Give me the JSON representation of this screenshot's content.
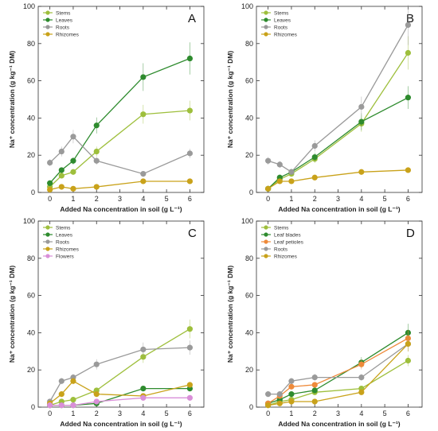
{
  "chart_data": [
    {
      "type": "line",
      "panel": "A",
      "xlabel": "Added Na concentration in soil (g L⁻¹)",
      "ylabel": "Na⁺ concentration (g kg⁻¹ DM)",
      "xlim": [
        -0.5,
        6.6
      ],
      "ylim": [
        0,
        100
      ],
      "xticks": [
        0,
        1,
        2,
        3,
        4,
        5,
        6
      ],
      "yticks": [
        0,
        20,
        40,
        60,
        80,
        100
      ],
      "x": [
        0,
        0.5,
        1,
        2,
        4,
        6
      ],
      "series": [
        {
          "name": "Stems",
          "color": "#9ebf3c",
          "values": [
            3,
            9,
            11,
            22,
            42,
            44
          ]
        },
        {
          "name": "Leaves",
          "color": "#2e8b2e",
          "values": [
            5,
            12,
            17,
            36,
            62,
            72
          ]
        },
        {
          "name": "Roots",
          "color": "#9a9a9a",
          "values": [
            16,
            22,
            30,
            17,
            10,
            21
          ]
        },
        {
          "name": "Rhizomes",
          "color": "#c9a21a",
          "values": [
            1.5,
            3,
            2,
            3,
            6,
            6
          ]
        }
      ],
      "legend": "top-left"
    },
    {
      "type": "line",
      "panel": "B",
      "xlabel": "Added Na concentration in soil (g L⁻¹)",
      "ylabel": "Na⁺ concentration (g kg⁻¹ DM)",
      "xlim": [
        -0.5,
        6.6
      ],
      "ylim": [
        0,
        100
      ],
      "xticks": [
        0,
        1,
        2,
        3,
        4,
        5,
        6
      ],
      "yticks": [
        0,
        20,
        40,
        60,
        80,
        100
      ],
      "x": [
        0,
        0.5,
        1,
        2,
        4,
        6
      ],
      "series": [
        {
          "name": "Stems",
          "color": "#9ebf3c",
          "values": [
            2,
            7,
            10,
            18,
            37,
            75
          ]
        },
        {
          "name": "Leaves",
          "color": "#2e8b2e",
          "values": [
            2,
            8,
            11,
            19,
            38,
            51
          ]
        },
        {
          "name": "Roots",
          "color": "#9a9a9a",
          "values": [
            17,
            15,
            11,
            25,
            46,
            90
          ]
        },
        {
          "name": "Rhizomes",
          "color": "#c9a21a",
          "values": [
            2,
            6,
            6,
            8,
            11,
            12
          ]
        }
      ],
      "legend": "top-left"
    },
    {
      "type": "line",
      "panel": "C",
      "xlabel": "Added Na concentration in soil (g L⁻¹)",
      "ylabel": "Na⁺ concentration (g kg⁻¹ DM)",
      "xlim": [
        -0.5,
        6.6
      ],
      "ylim": [
        0,
        100
      ],
      "xticks": [
        0,
        1,
        2,
        3,
        4,
        5,
        6
      ],
      "yticks": [
        0,
        20,
        40,
        60,
        80,
        100
      ],
      "x": [
        0,
        0.5,
        1,
        2,
        4,
        6
      ],
      "series": [
        {
          "name": "Stems",
          "color": "#9ebf3c",
          "values": [
            1,
            3,
            4,
            9,
            27,
            42
          ]
        },
        {
          "name": "Leaves",
          "color": "#2e8b2e",
          "values": [
            1,
            1,
            1,
            2,
            10,
            10
          ]
        },
        {
          "name": "Roots",
          "color": "#9a9a9a",
          "values": [
            3,
            14,
            16,
            23,
            31,
            32
          ]
        },
        {
          "name": "Rhizomes",
          "color": "#c9a21a",
          "values": [
            2,
            7,
            14,
            7,
            6,
            12
          ]
        },
        {
          "name": "Flowers",
          "color": "#d98fd8",
          "values": [
            1,
            1,
            1,
            3,
            5,
            5
          ]
        }
      ],
      "legend": "top-left"
    },
    {
      "type": "line",
      "panel": "D",
      "xlabel": "Added Na concentration in soil (g L⁻¹)",
      "ylabel": "Na⁺ concentration (g kg⁻¹ DM)",
      "xlim": [
        -0.5,
        6.6
      ],
      "ylim": [
        0,
        100
      ],
      "xticks": [
        0,
        1,
        2,
        3,
        4,
        5,
        6
      ],
      "yticks": [
        0,
        20,
        40,
        60,
        80,
        100
      ],
      "x": [
        0,
        0.5,
        1,
        2,
        4,
        6
      ],
      "series": [
        {
          "name": "Stems",
          "color": "#9ebf3c",
          "values": [
            1,
            3,
            4,
            8,
            10,
            25
          ]
        },
        {
          "name": "Leaf blades",
          "color": "#2e8b2e",
          "values": [
            2,
            4,
            7,
            9,
            24,
            40
          ]
        },
        {
          "name": "Leaf petioles",
          "color": "#ee8a3a",
          "values": [
            2,
            6,
            11,
            12,
            23,
            37
          ]
        },
        {
          "name": "Roots",
          "color": "#9a9a9a",
          "values": [
            7,
            7,
            14,
            16,
            16,
            34
          ]
        },
        {
          "name": "Rhizomes",
          "color": "#c9a21a",
          "values": [
            1,
            2,
            3,
            3,
            8,
            34
          ]
        }
      ],
      "legend": "top-left"
    }
  ]
}
